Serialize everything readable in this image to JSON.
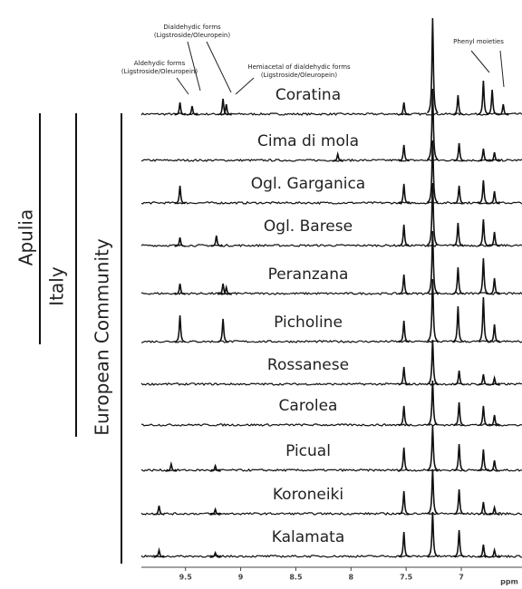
{
  "chart_data": {
    "type": "stacked-spectra",
    "groups": [
      "Apulia",
      "Italy",
      "European Community"
    ],
    "annotations": [
      {
        "lines": [
          "Aldehydic forms",
          "(Ligstroside/Oleuropein)"
        ]
      },
      {
        "lines": [
          "Dialdehydic forms",
          "(Ligstroside/Oleuropein)"
        ]
      },
      {
        "lines": [
          "Hemiacetal of dialdehydic forms",
          "(Ligstroside/Oleuropein)"
        ]
      },
      {
        "lines": [
          "Phenyl moieties"
        ]
      }
    ],
    "x_label": "ppm",
    "xlim": [
      9.9,
      6.45
    ],
    "xticks": [
      9.5,
      9.0,
      8.5,
      8.0,
      7.5,
      7.0
    ],
    "color": "#111111",
    "series": [
      {
        "name": "Coratina",
        "x": [
          9.55,
          9.44,
          9.16,
          9.13,
          7.52,
          7.26,
          7.03,
          6.8,
          6.72,
          6.62
        ],
        "values": [
          14,
          10,
          18,
          12,
          14,
          107,
          22,
          38,
          28,
          12
        ]
      },
      {
        "name": "Cima di mola",
        "x": [
          8.12,
          7.52,
          7.26,
          7.02,
          6.8,
          6.7
        ],
        "values": [
          8,
          18,
          80,
          20,
          14,
          10
        ]
      },
      {
        "name": "Ogl. Garganica",
        "x": [
          9.55,
          7.52,
          7.26,
          7.02,
          6.8,
          6.7
        ],
        "values": [
          20,
          22,
          70,
          20,
          26,
          14
        ]
      },
      {
        "name": "Ogl. Barese",
        "x": [
          9.55,
          9.22,
          7.52,
          7.26,
          7.03,
          6.8,
          6.7
        ],
        "values": [
          10,
          12,
          24,
          70,
          26,
          30,
          16
        ]
      },
      {
        "name": "Peranzana",
        "x": [
          9.55,
          9.16,
          9.13,
          7.52,
          7.26,
          7.03,
          6.8,
          6.7
        ],
        "values": [
          12,
          12,
          8,
          22,
          70,
          30,
          40,
          18
        ]
      },
      {
        "name": "Picholine",
        "x": [
          9.55,
          9.16,
          7.52,
          7.26,
          7.03,
          6.8,
          6.7
        ],
        "values": [
          30,
          26,
          24,
          70,
          40,
          50,
          20
        ]
      },
      {
        "name": "Rossanese",
        "x": [
          7.52,
          7.26,
          7.02,
          6.8,
          6.7
        ],
        "values": [
          20,
          50,
          16,
          12,
          8
        ]
      },
      {
        "name": "Carolea",
        "x": [
          7.52,
          7.26,
          7.02,
          6.8,
          6.7
        ],
        "values": [
          22,
          50,
          26,
          22,
          12
        ]
      },
      {
        "name": "Picual",
        "x": [
          9.63,
          9.23,
          7.52,
          7.26,
          7.02,
          6.8,
          6.7
        ],
        "values": [
          8,
          6,
          26,
          50,
          30,
          24,
          12
        ]
      },
      {
        "name": "Koroneiki",
        "x": [
          9.74,
          9.23,
          7.52,
          7.26,
          7.02,
          6.8,
          6.7
        ],
        "values": [
          10,
          6,
          26,
          50,
          28,
          14,
          8
        ]
      },
      {
        "name": "Kalamata",
        "x": [
          9.74,
          9.23,
          7.52,
          7.26,
          7.02,
          6.8,
          6.7
        ],
        "values": [
          8,
          5,
          28,
          50,
          30,
          14,
          8
        ]
      }
    ]
  }
}
